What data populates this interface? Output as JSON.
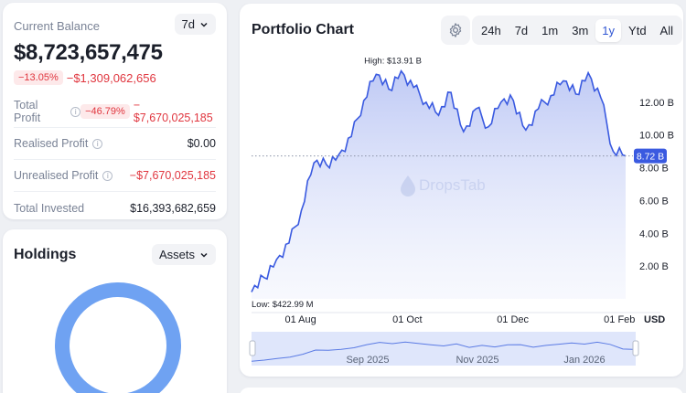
{
  "balance": {
    "label": "Current Balance",
    "range": "7d",
    "value": "$8,723,657,475",
    "change_pct": "−13.05%",
    "change_abs": "−$1,309,062,656",
    "stats": [
      {
        "label": "Total Profit",
        "has_info": true,
        "badge": "−46.79%",
        "value": "−$7,670,025,185",
        "negative": true
      },
      {
        "label": "Realised Profit",
        "has_info": true,
        "badge": "",
        "value": "$0.00",
        "negative": false
      },
      {
        "label": "Unrealised Profit",
        "has_info": true,
        "badge": "",
        "value": "−$7,670,025,185",
        "negative": true
      },
      {
        "label": "Total Invested",
        "has_info": false,
        "badge": "",
        "value": "$16,393,682,659",
        "negative": false
      }
    ]
  },
  "holdings": {
    "title": "Holdings",
    "dropdown": "Assets",
    "ring_color": "#6fa2f2"
  },
  "chart": {
    "title": "Portfolio Chart",
    "settings_icon": "gear-icon",
    "ranges": [
      "24h",
      "7d",
      "1m",
      "3m",
      "1y",
      "Ytd",
      "All"
    ],
    "active_range": "1y",
    "high_label": "High: $13.91 B",
    "low_label": "Low: $422.99 M",
    "current_label": "8.72 B",
    "currency": "USD",
    "watermark": "DropsTab",
    "nav_labels": [
      "Sep 2025",
      "Nov 2025",
      "Jan 2026"
    ],
    "accent": "#3a5ae0"
  },
  "chart_data": {
    "type": "area",
    "ylabel": "USD",
    "yticks": [
      "2.00 B",
      "4.00 B",
      "6.00 B",
      "8.00 B",
      "10.00 B",
      "12.00 B"
    ],
    "xticks": [
      "01 Aug",
      "01 Oct",
      "01 Dec",
      "01 Feb"
    ],
    "ylim": [
      0,
      14.5
    ],
    "x": [
      "Jul 11",
      "Jul 17",
      "Jul 24",
      "Jul 31",
      "Aug 7",
      "Aug 14",
      "Aug 21",
      "Aug 28",
      "Sep 4",
      "Sep 11",
      "Sep 18",
      "Sep 25",
      "Oct 2",
      "Oct 9",
      "Oct 16",
      "Oct 23",
      "Oct 30",
      "Nov 6",
      "Nov 13",
      "Nov 20",
      "Nov 27",
      "Dec 4",
      "Dec 11",
      "Dec 18",
      "Dec 25",
      "Jan 1",
      "Jan 8",
      "Jan 15",
      "Jan 22",
      "Jan 29",
      "Feb 5"
    ],
    "values": [
      0.42,
      1.3,
      2.4,
      3.4,
      5.4,
      8.3,
      8.2,
      8.8,
      9.9,
      12.1,
      13.7,
      12.8,
      13.91,
      12.9,
      12.0,
      11.2,
      12.6,
      10.2,
      11.6,
      10.5,
      12.0,
      12.1,
      10.3,
      11.6,
      12.4,
      13.3,
      12.5,
      13.8,
      12.3,
      9.0,
      8.72
    ],
    "high": 13.91,
    "low": 0.42299,
    "current": 8.72
  }
}
